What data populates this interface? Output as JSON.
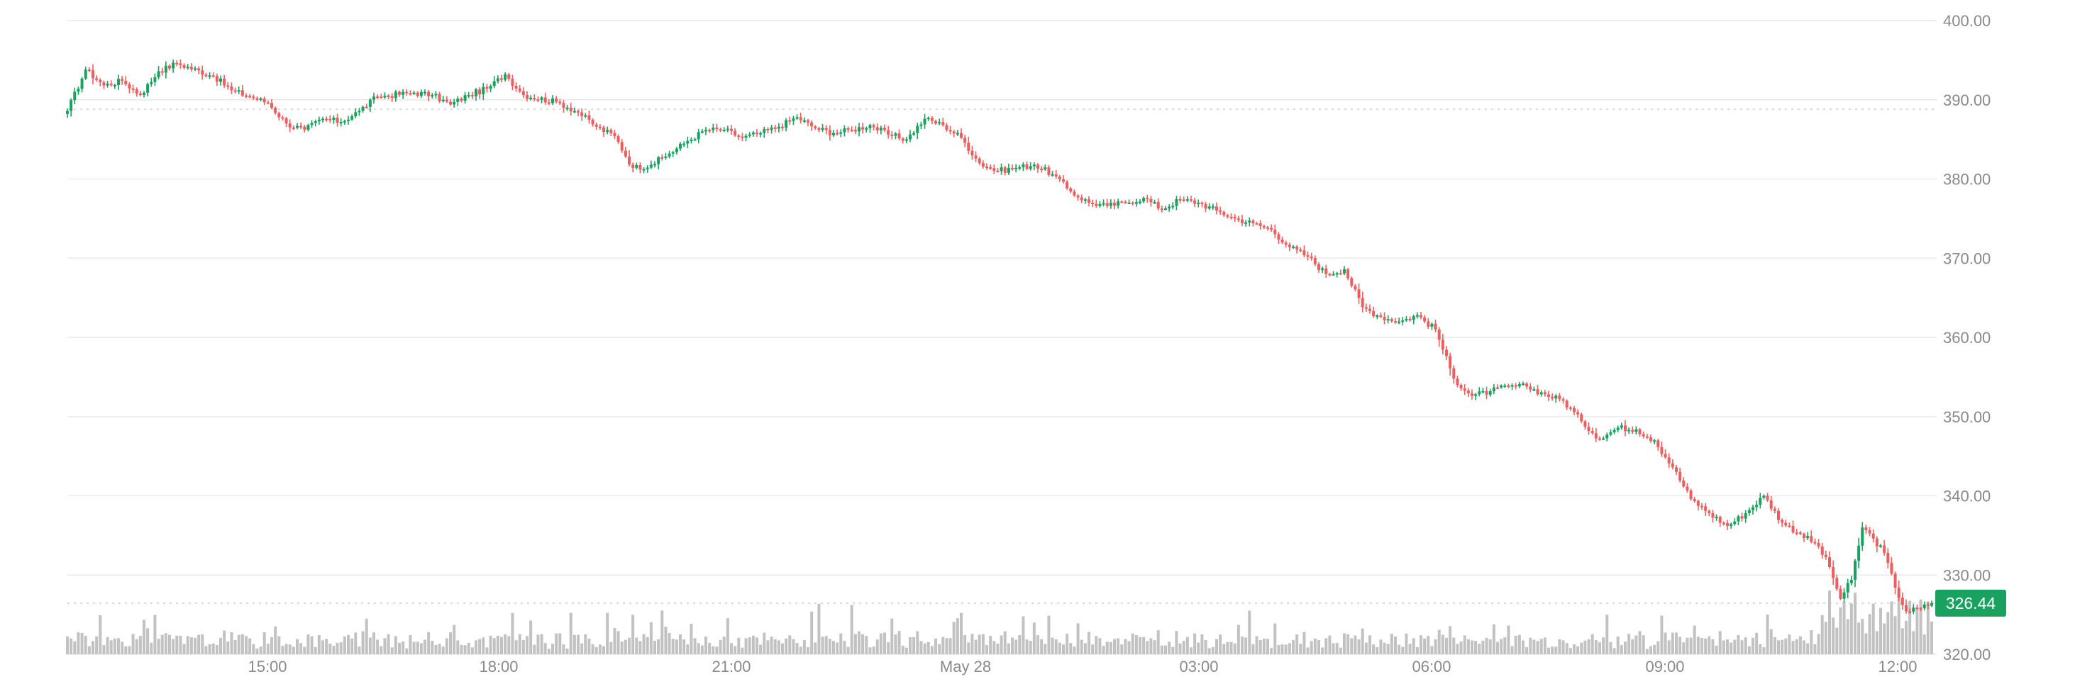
{
  "chart_data": {
    "type": "candlestick",
    "title": "",
    "xlabel": "",
    "ylabel": "",
    "ylim": [
      320,
      400
    ],
    "x_tick_labels": [
      "15:00",
      "18:00",
      "21:00",
      "May 28",
      "03:00",
      "06:00",
      "09:00",
      "12:00"
    ],
    "y_tick_labels": [
      "400.00",
      "390.00",
      "380.00",
      "370.00",
      "360.00",
      "350.00",
      "340.00",
      "330.00",
      "320.00"
    ],
    "y_tick_values": [
      400,
      390,
      380,
      370,
      360,
      350,
      340,
      330,
      320
    ],
    "grid": true,
    "reference_line": 388.8,
    "last_price": 326.44,
    "last_price_label": "326.44",
    "colors": {
      "up": "#18a15f",
      "down": "#ec5f5f",
      "volume": "#c2c2c2",
      "grid": "#e9e9e9",
      "tag_bg": "#18a15f"
    },
    "anchors": [
      [
        0,
        388.6
      ],
      [
        5,
        393.8
      ],
      [
        10,
        391.8
      ],
      [
        15,
        392.4
      ],
      [
        20,
        390.6
      ],
      [
        25,
        393.6
      ],
      [
        30,
        394.6
      ],
      [
        40,
        393.0
      ],
      [
        45,
        391.2
      ],
      [
        50,
        390.4
      ],
      [
        55,
        389.6
      ],
      [
        60,
        387.0
      ],
      [
        65,
        386.2
      ],
      [
        70,
        387.6
      ],
      [
        75,
        387.2
      ],
      [
        80,
        388.6
      ],
      [
        85,
        390.4
      ],
      [
        95,
        390.9
      ],
      [
        100,
        390.6
      ],
      [
        105,
        389.4
      ],
      [
        110,
        390.6
      ],
      [
        115,
        391.4
      ],
      [
        120,
        393.2
      ],
      [
        125,
        390.6
      ],
      [
        135,
        389.6
      ],
      [
        140,
        388.4
      ],
      [
        145,
        386.6
      ],
      [
        150,
        385.4
      ],
      [
        155,
        381.4
      ],
      [
        160,
        381.8
      ],
      [
        165,
        383.2
      ],
      [
        170,
        384.8
      ],
      [
        175,
        386.2
      ],
      [
        180,
        386.2
      ],
      [
        185,
        385.2
      ],
      [
        190,
        385.8
      ],
      [
        195,
        386.6
      ],
      [
        200,
        387.8
      ],
      [
        205,
        386.4
      ],
      [
        210,
        385.8
      ],
      [
        215,
        386.2
      ],
      [
        220,
        386.8
      ],
      [
        225,
        385.6
      ],
      [
        230,
        385.0
      ],
      [
        235,
        387.6
      ],
      [
        240,
        386.8
      ],
      [
        245,
        385.2
      ],
      [
        250,
        382.0
      ],
      [
        255,
        381.0
      ],
      [
        260,
        381.4
      ],
      [
        265,
        381.8
      ],
      [
        270,
        380.6
      ],
      [
        275,
        378.4
      ],
      [
        280,
        377.0
      ],
      [
        285,
        376.6
      ],
      [
        290,
        377.0
      ],
      [
        295,
        377.6
      ],
      [
        300,
        376.2
      ],
      [
        305,
        377.4
      ],
      [
        310,
        377.0
      ],
      [
        315,
        376.0
      ],
      [
        320,
        375.0
      ],
      [
        325,
        374.4
      ],
      [
        330,
        373.6
      ],
      [
        335,
        371.4
      ],
      [
        340,
        370.2
      ],
      [
        345,
        368.0
      ],
      [
        350,
        368.6
      ],
      [
        355,
        363.8
      ],
      [
        360,
        362.6
      ],
      [
        365,
        362.0
      ],
      [
        370,
        362.8
      ],
      [
        375,
        361.0
      ],
      [
        380,
        354.8
      ],
      [
        385,
        352.6
      ],
      [
        390,
        353.2
      ],
      [
        395,
        353.8
      ],
      [
        400,
        353.8
      ],
      [
        405,
        352.8
      ],
      [
        410,
        352.0
      ],
      [
        415,
        349.4
      ],
      [
        420,
        347.2
      ],
      [
        425,
        348.6
      ],
      [
        430,
        348.4
      ],
      [
        435,
        347.0
      ],
      [
        440,
        343.6
      ],
      [
        445,
        339.6
      ],
      [
        450,
        337.8
      ],
      [
        455,
        336.2
      ],
      [
        460,
        337.8
      ],
      [
        465,
        340.0
      ],
      [
        470,
        336.6
      ],
      [
        475,
        335.2
      ],
      [
        480,
        333.6
      ],
      [
        483,
        331.0
      ],
      [
        486,
        327.0
      ],
      [
        489,
        329.4
      ],
      [
        492,
        336.0
      ],
      [
        495,
        334.6
      ],
      [
        498,
        332.8
      ],
      [
        501,
        328.4
      ],
      [
        504,
        325.4
      ],
      [
        508,
        325.8
      ],
      [
        511,
        326.44
      ]
    ]
  }
}
